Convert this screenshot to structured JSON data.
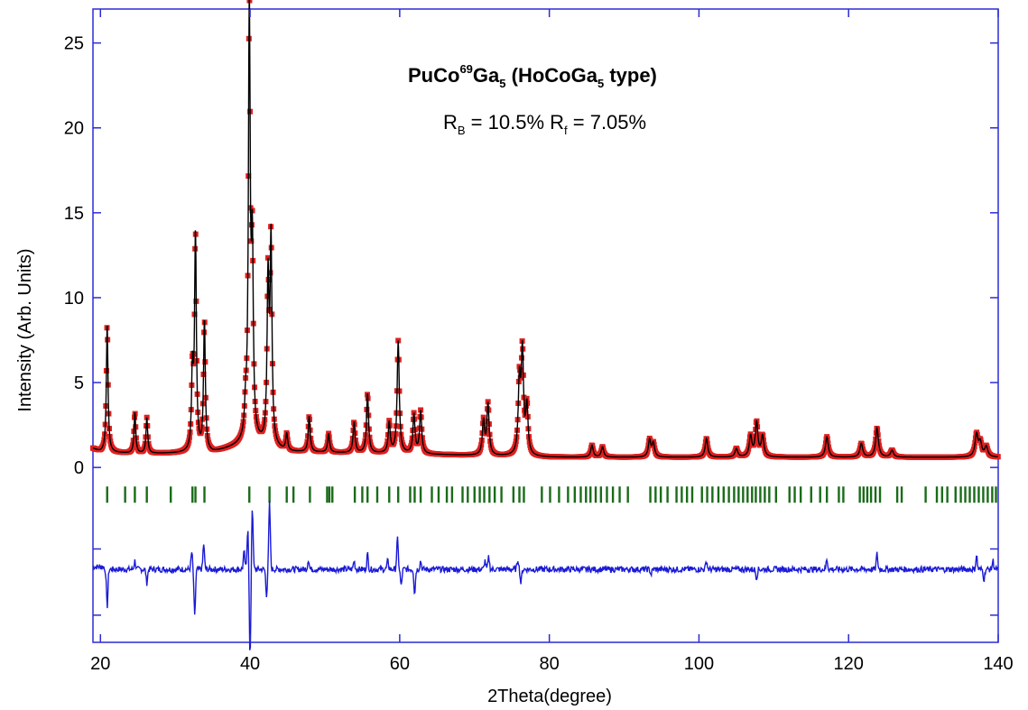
{
  "chart_data": {
    "type": "line",
    "xlabel": "2Theta(degree)",
    "ylabel": "Intensity (Arb. Units)",
    "xlim": [
      19,
      140
    ],
    "ylim": [
      -10.3,
      27
    ],
    "x_ticks": [
      20,
      40,
      60,
      80,
      100,
      120,
      140
    ],
    "y_ticks": [
      0,
      5,
      10,
      15,
      20,
      25
    ],
    "grid": false,
    "annotation": {
      "title_main": "PuCo",
      "title_sup": "69",
      "title_mid": "Ga",
      "title_sub1": "5",
      "title_paren_start": " (HoCoGa",
      "title_sub2": "5",
      "title_paren_end": " type)",
      "rb_label": "R",
      "rb_sub": "B",
      "rb_value": " = 10.5% R",
      "rf_sub": "f",
      "rf_value": " = 7.05%"
    },
    "baseline": 0.7,
    "background_points": [
      [
        19,
        1.1
      ],
      [
        20,
        0.9
      ],
      [
        25,
        0.8
      ],
      [
        35,
        0.85
      ],
      [
        38,
        1.2
      ],
      [
        40,
        1.5
      ],
      [
        45,
        0.9
      ],
      [
        60,
        0.8
      ],
      [
        80,
        0.6
      ],
      [
        100,
        0.6
      ],
      [
        120,
        0.6
      ],
      [
        140,
        0.6
      ]
    ],
    "peaks": [
      [
        20.9,
        7.6
      ],
      [
        24.6,
        2.4
      ],
      [
        26.2,
        2.1
      ],
      [
        32.3,
        4.5
      ],
      [
        32.7,
        12.7
      ],
      [
        33.9,
        7.7
      ],
      [
        39.4,
        1.5
      ],
      [
        39.9,
        25.1
      ],
      [
        40.3,
        10.5
      ],
      [
        42.4,
        9.5
      ],
      [
        42.8,
        11.9
      ],
      [
        44.9,
        1.0
      ],
      [
        47.9,
        2.1
      ],
      [
        50.5,
        1.1
      ],
      [
        53.9,
        1.8
      ],
      [
        55.7,
        3.5
      ],
      [
        58.6,
        1.8
      ],
      [
        59.8,
        6.6
      ],
      [
        61.9,
        2.3
      ],
      [
        62.8,
        2.5
      ],
      [
        71.2,
        2.0
      ],
      [
        71.8,
        3.0
      ],
      [
        76.0,
        4.2
      ],
      [
        76.4,
        5.9
      ],
      [
        77.0,
        2.8
      ],
      [
        85.7,
        0.7
      ],
      [
        87.1,
        0.6
      ],
      [
        93.4,
        1.0
      ],
      [
        93.9,
        0.8
      ],
      [
        101.0,
        1.1
      ],
      [
        105.0,
        0.5
      ],
      [
        106.9,
        1.2
      ],
      [
        107.7,
        2.0
      ],
      [
        108.5,
        1.2
      ],
      [
        117.1,
        1.2
      ],
      [
        121.7,
        0.8
      ],
      [
        123.8,
        1.7
      ],
      [
        125.8,
        0.4
      ],
      [
        137.1,
        1.3
      ],
      [
        137.6,
        0.8
      ],
      [
        138.4,
        0.6
      ]
    ],
    "bragg_y": -1.6,
    "bragg_positions": [
      20.9,
      23.3,
      24.6,
      26.2,
      29.4,
      32.3,
      32.7,
      33.9,
      39.9,
      42.6,
      44.9,
      45.8,
      48.0,
      50.3,
      50.6,
      51.0,
      54.0,
      55.0,
      55.7,
      57.0,
      58.6,
      59.8,
      61.4,
      62.0,
      62.8,
      64.3,
      65.2,
      66.3,
      67.0,
      68.4,
      69.1,
      70.0,
      70.7,
      71.3,
      72.0,
      72.7,
      73.6,
      75.2,
      76.0,
      76.6,
      79.0,
      80.1,
      81.3,
      82.5,
      83.4,
      84.2,
      84.9,
      85.5,
      86.2,
      86.9,
      87.7,
      88.5,
      89.4,
      90.5,
      93.5,
      94.2,
      94.9,
      95.8,
      97.0,
      97.7,
      98.4,
      99.1,
      100.4,
      101.1,
      101.8,
      102.6,
      103.3,
      104.0,
      104.7,
      105.3,
      105.9,
      106.5,
      107.1,
      107.6,
      108.2,
      108.8,
      109.4,
      110.3,
      112.1,
      112.8,
      113.6,
      115.0,
      116.2,
      117.1,
      118.7,
      119.3,
      121.5,
      122.0,
      122.5,
      123.0,
      123.6,
      124.2,
      126.5,
      127.1,
      130.3,
      131.8,
      132.5,
      133.2,
      134.3,
      135.0,
      135.6,
      136.2,
      136.8,
      137.4,
      138.0,
      138.6,
      139.2,
      139.7
    ],
    "difference_offset": -6.0,
    "difference_spikes": [
      [
        20.9,
        -2.2
      ],
      [
        24.6,
        0.5
      ],
      [
        26.2,
        -0.8
      ],
      [
        32.2,
        1.0
      ],
      [
        32.6,
        -2.8
      ],
      [
        33.8,
        1.5
      ],
      [
        39.2,
        1.0
      ],
      [
        39.7,
        2.5
      ],
      [
        40.0,
        -5.3
      ],
      [
        40.3,
        3.7
      ],
      [
        42.6,
        3.9
      ],
      [
        42.2,
        -1.5
      ],
      [
        47.8,
        0.6
      ],
      [
        53.9,
        0.5
      ],
      [
        55.7,
        0.9
      ],
      [
        58.4,
        0.5
      ],
      [
        59.7,
        1.8
      ],
      [
        60.2,
        -1.0
      ],
      [
        62.0,
        -1.4
      ],
      [
        62.8,
        0.5
      ],
      [
        71.4,
        0.5
      ],
      [
        71.9,
        0.7
      ],
      [
        75.8,
        0.6
      ],
      [
        76.2,
        -0.8
      ],
      [
        93.6,
        -0.3
      ],
      [
        101.0,
        0.5
      ],
      [
        107.7,
        -0.5
      ],
      [
        117.1,
        0.6
      ],
      [
        123.8,
        0.9
      ],
      [
        137.1,
        0.8
      ],
      [
        138.1,
        -0.6
      ],
      [
        139.3,
        0.5
      ]
    ],
    "colors": {
      "axes": "#2b2bd6",
      "observed": "#e02020",
      "calculated": "#000000",
      "bragg": "#1a6b1a",
      "difference": "#1a1ad6"
    }
  }
}
